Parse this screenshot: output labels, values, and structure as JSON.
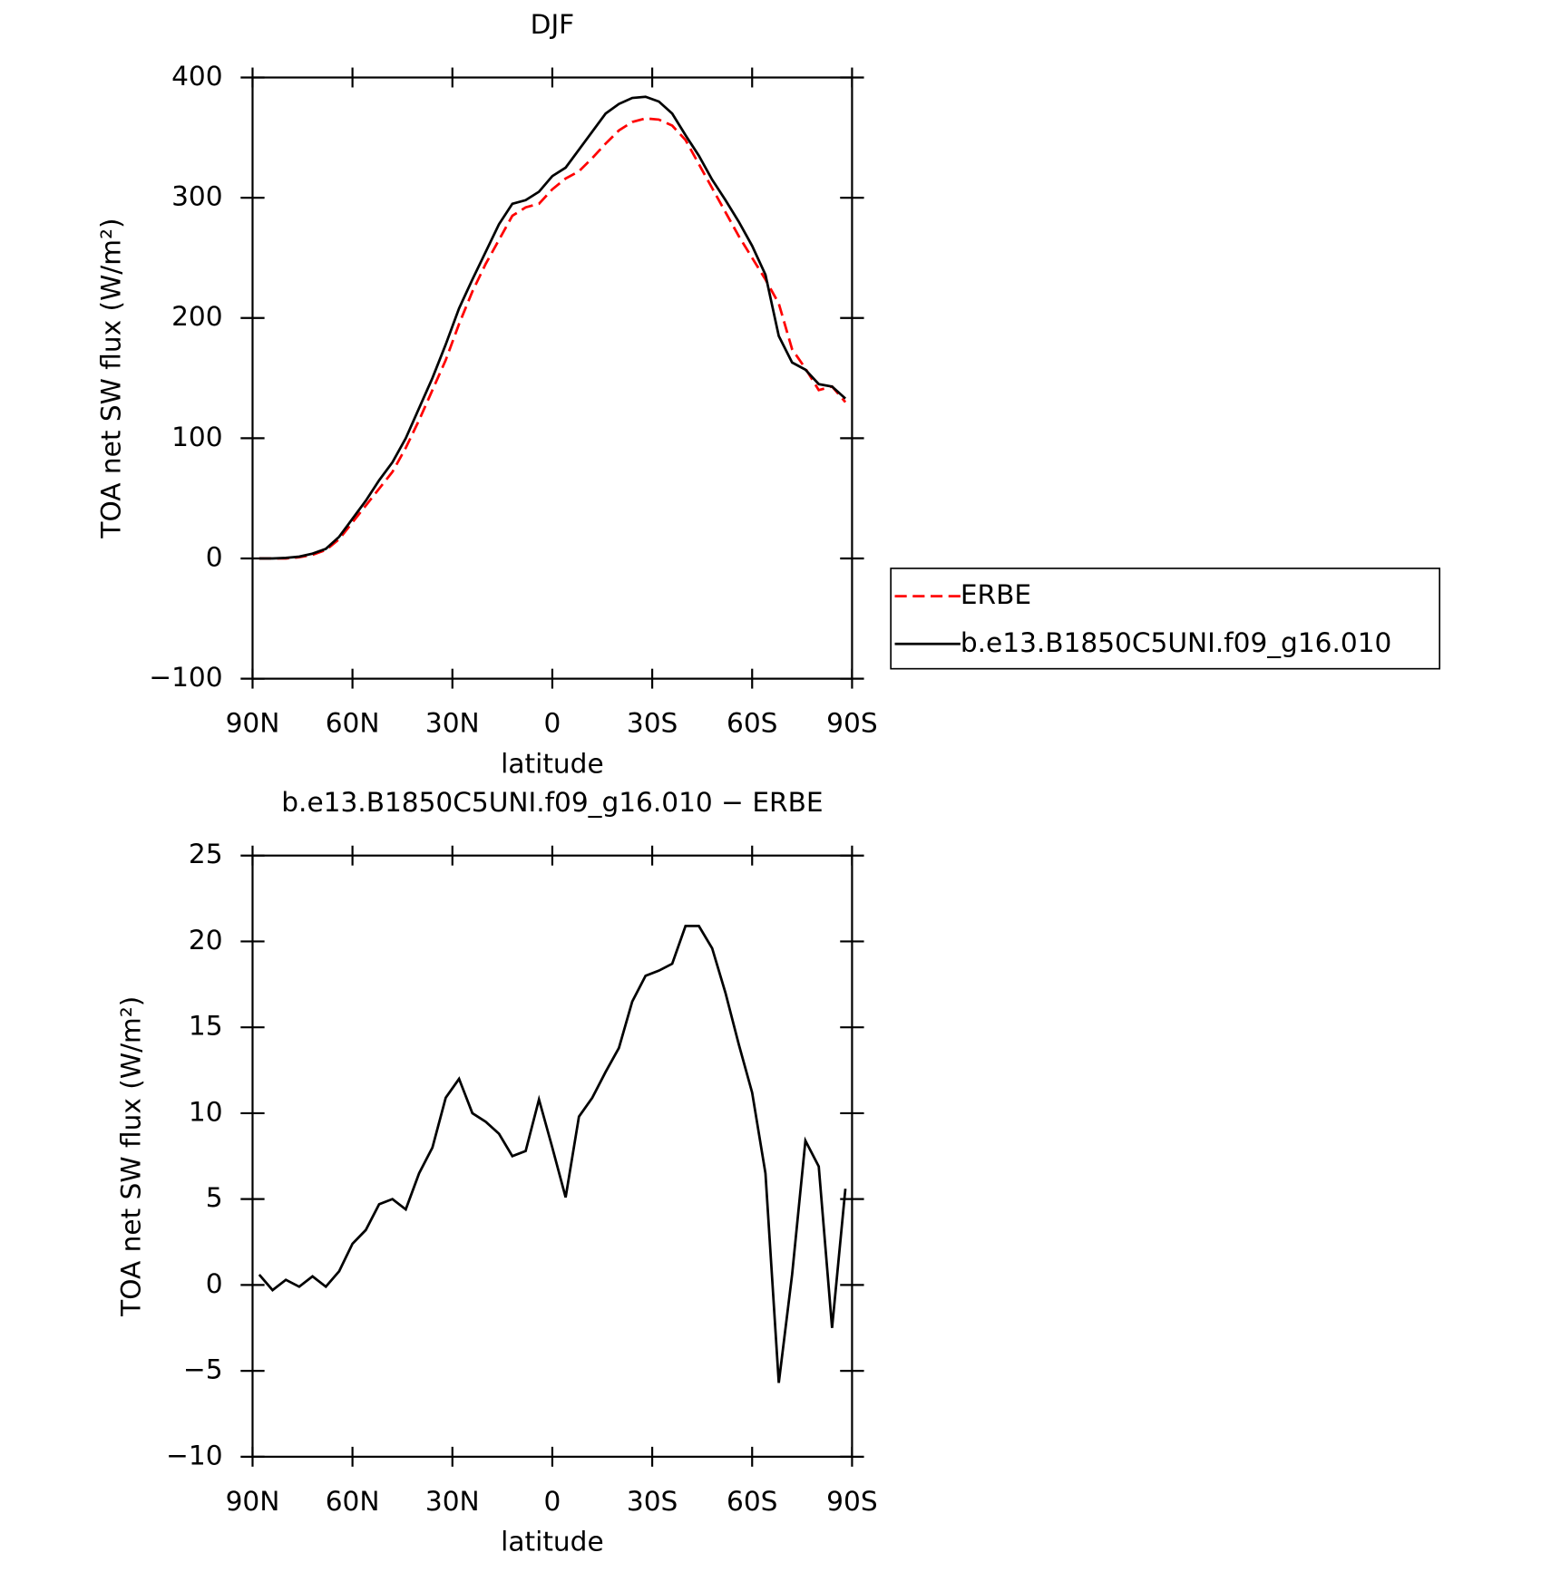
{
  "chart_data": [
    {
      "type": "line",
      "title": "DJF",
      "xlabel": "latitude",
      "ylabel": "TOA net SW flux (W/m²)",
      "xlim": [
        90,
        -90
      ],
      "xticks": [
        {
          "value": 90,
          "label": "90N"
        },
        {
          "value": 60,
          "label": "60N"
        },
        {
          "value": 30,
          "label": "30N"
        },
        0,
        {
          "value": -30,
          "label": "30S"
        },
        {
          "value": -60,
          "label": "60S"
        },
        {
          "value": -90,
          "label": "90S"
        }
      ],
      "ylim": [
        -100,
        400
      ],
      "yticks": [
        {
          "value": -100,
          "label": "−100"
        },
        0,
        100,
        200,
        300,
        400
      ],
      "legend": "right",
      "x": [
        88,
        84,
        80,
        76,
        72,
        68,
        64,
        60,
        56,
        52,
        48,
        44,
        40,
        36,
        32,
        28,
        24,
        20,
        16,
        12,
        8,
        4,
        0,
        -4,
        -8,
        -12,
        -16,
        -20,
        -24,
        -28,
        -32,
        -36,
        -40,
        -44,
        -48,
        -52,
        -56,
        -60,
        -64,
        -68,
        -72,
        -76,
        -80,
        -84,
        -88
      ],
      "series": [
        {
          "name": "ERBE",
          "color": "#ff0000",
          "dash": true,
          "values": [
            0,
            0,
            0,
            1,
            3,
            7,
            16,
            30,
            44,
            58,
            72,
            92,
            115,
            140,
            165,
            195,
            222,
            245,
            265,
            285,
            292,
            295,
            307,
            316,
            322,
            333,
            345,
            356,
            363,
            366,
            365,
            360,
            348,
            328,
            308,
            288,
            268,
            250,
            232,
            212,
            174,
            158,
            140,
            143,
            130
          ]
        },
        {
          "name": "b.e13.B1850C5UNI.f09_g16.010",
          "color": "#000000",
          "dash": false,
          "values": [
            0,
            0,
            0.5,
            1.5,
            4,
            8,
            18,
            33,
            48,
            65,
            80,
            100,
            125,
            150,
            178,
            208,
            232,
            255,
            278,
            295,
            298,
            305,
            318,
            325,
            340,
            355,
            370,
            378,
            383,
            384,
            380,
            370,
            352,
            335,
            315,
            298,
            280,
            260,
            236,
            185,
            163,
            157,
            145,
            143,
            133
          ]
        }
      ]
    },
    {
      "type": "line",
      "title": "b.e13.B1850C5UNI.f09_g16.010 − ERBE",
      "xlabel": "latitude",
      "ylabel": "TOA net SW flux (W/m²)",
      "xlim": [
        90,
        -90
      ],
      "xticks": [
        {
          "value": 90,
          "label": "90N"
        },
        {
          "value": 60,
          "label": "60N"
        },
        {
          "value": 30,
          "label": "30N"
        },
        0,
        {
          "value": -30,
          "label": "30S"
        },
        {
          "value": -60,
          "label": "60S"
        },
        {
          "value": -90,
          "label": "90S"
        }
      ],
      "ylim": [
        -10,
        25
      ],
      "yticks": [
        {
          "value": -10,
          "label": "−10"
        },
        {
          "value": -5,
          "label": "−5"
        },
        0,
        5,
        10,
        15,
        20,
        25
      ],
      "x": [
        88,
        84,
        80,
        76,
        72,
        68,
        64,
        60,
        56,
        52,
        48,
        44,
        40,
        36,
        32,
        28,
        24,
        20,
        16,
        12,
        8,
        4,
        0,
        -4,
        -8,
        -12,
        -16,
        -20,
        -24,
        -28,
        -32,
        -36,
        -40,
        -44,
        -48,
        -52,
        -56,
        -60,
        -64,
        -68,
        -72,
        -76,
        -80,
        -84,
        -88
      ],
      "series": [
        {
          "color": "#000000",
          "values": [
            0.6,
            -0.3,
            0.3,
            -0.1,
            0.5,
            -0.1,
            0.8,
            2.4,
            3.2,
            4.7,
            5.0,
            4.4,
            6.5,
            8.0,
            10.9,
            12.0,
            10.0,
            9.5,
            8.8,
            7.5,
            7.8,
            10.8,
            8.0,
            5.1,
            9.8,
            10.9,
            12.4,
            13.8,
            16.5,
            18.0,
            18.3,
            18.7,
            20.9,
            20.9,
            19.6,
            17.0,
            14.0,
            11.2,
            6.5,
            -5.7,
            0.6,
            8.4,
            6.9,
            -2.5,
            5.6
          ]
        }
      ]
    }
  ]
}
